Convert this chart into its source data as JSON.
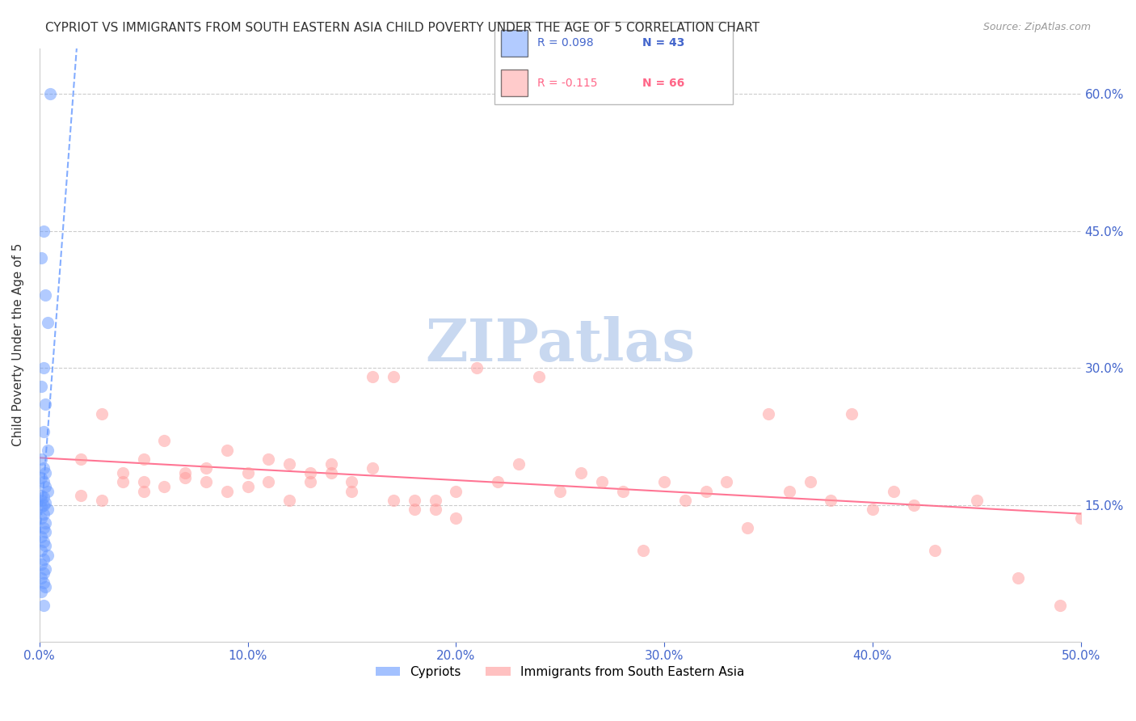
{
  "title": "CYPRIOT VS IMMIGRANTS FROM SOUTH EASTERN ASIA CHILD POVERTY UNDER THE AGE OF 5 CORRELATION CHART",
  "source": "Source: ZipAtlas.com",
  "ylabel": "Child Poverty Under the Age of 5",
  "xlim": [
    0.0,
    0.5
  ],
  "ylim": [
    0.0,
    0.65
  ],
  "legend_r1": "R = 0.098",
  "legend_n1": "N = 43",
  "legend_r2": "R = -0.115",
  "legend_n2": "N = 66",
  "color_blue": "#6699FF",
  "color_pink": "#FF9999",
  "trendline_blue_color": "#6699FF",
  "trendline_pink_color": "#FF6688",
  "watermark": "ZIPatlas",
  "watermark_color": "#C8D8F0",
  "cypriot_x": [
    0.005,
    0.002,
    0.001,
    0.003,
    0.004,
    0.002,
    0.001,
    0.003,
    0.002,
    0.004,
    0.001,
    0.002,
    0.003,
    0.001,
    0.002,
    0.003,
    0.004,
    0.001,
    0.002,
    0.001,
    0.003,
    0.002,
    0.001,
    0.004,
    0.002,
    0.001,
    0.003,
    0.002,
    0.003,
    0.001,
    0.002,
    0.003,
    0.001,
    0.004,
    0.002,
    0.001,
    0.003,
    0.002,
    0.001,
    0.002,
    0.003,
    0.001,
    0.002
  ],
  "cypriot_y": [
    0.6,
    0.45,
    0.42,
    0.38,
    0.35,
    0.3,
    0.28,
    0.26,
    0.23,
    0.21,
    0.2,
    0.19,
    0.185,
    0.18,
    0.175,
    0.17,
    0.165,
    0.16,
    0.158,
    0.155,
    0.152,
    0.15,
    0.148,
    0.145,
    0.14,
    0.135,
    0.13,
    0.125,
    0.12,
    0.115,
    0.11,
    0.105,
    0.1,
    0.095,
    0.09,
    0.085,
    0.08,
    0.075,
    0.07,
    0.065,
    0.06,
    0.055,
    0.04
  ],
  "sea_x": [
    0.02,
    0.05,
    0.03,
    0.04,
    0.06,
    0.02,
    0.03,
    0.05,
    0.07,
    0.04,
    0.08,
    0.06,
    0.09,
    0.1,
    0.05,
    0.11,
    0.07,
    0.12,
    0.08,
    0.13,
    0.09,
    0.14,
    0.1,
    0.15,
    0.11,
    0.16,
    0.12,
    0.17,
    0.13,
    0.18,
    0.14,
    0.19,
    0.15,
    0.2,
    0.16,
    0.21,
    0.22,
    0.23,
    0.17,
    0.24,
    0.25,
    0.18,
    0.26,
    0.27,
    0.28,
    0.19,
    0.29,
    0.3,
    0.2,
    0.31,
    0.32,
    0.33,
    0.34,
    0.35,
    0.36,
    0.37,
    0.38,
    0.39,
    0.4,
    0.41,
    0.42,
    0.43,
    0.45,
    0.47,
    0.49,
    0.5
  ],
  "sea_y": [
    0.2,
    0.175,
    0.25,
    0.185,
    0.22,
    0.16,
    0.155,
    0.2,
    0.185,
    0.175,
    0.19,
    0.17,
    0.21,
    0.185,
    0.165,
    0.2,
    0.18,
    0.195,
    0.175,
    0.185,
    0.165,
    0.195,
    0.17,
    0.165,
    0.175,
    0.19,
    0.155,
    0.29,
    0.175,
    0.145,
    0.185,
    0.155,
    0.175,
    0.165,
    0.29,
    0.3,
    0.175,
    0.195,
    0.155,
    0.29,
    0.165,
    0.155,
    0.185,
    0.175,
    0.165,
    0.145,
    0.1,
    0.175,
    0.135,
    0.155,
    0.165,
    0.175,
    0.125,
    0.25,
    0.165,
    0.175,
    0.155,
    0.25,
    0.145,
    0.165,
    0.15,
    0.1,
    0.155,
    0.07,
    0.04,
    0.135
  ]
}
